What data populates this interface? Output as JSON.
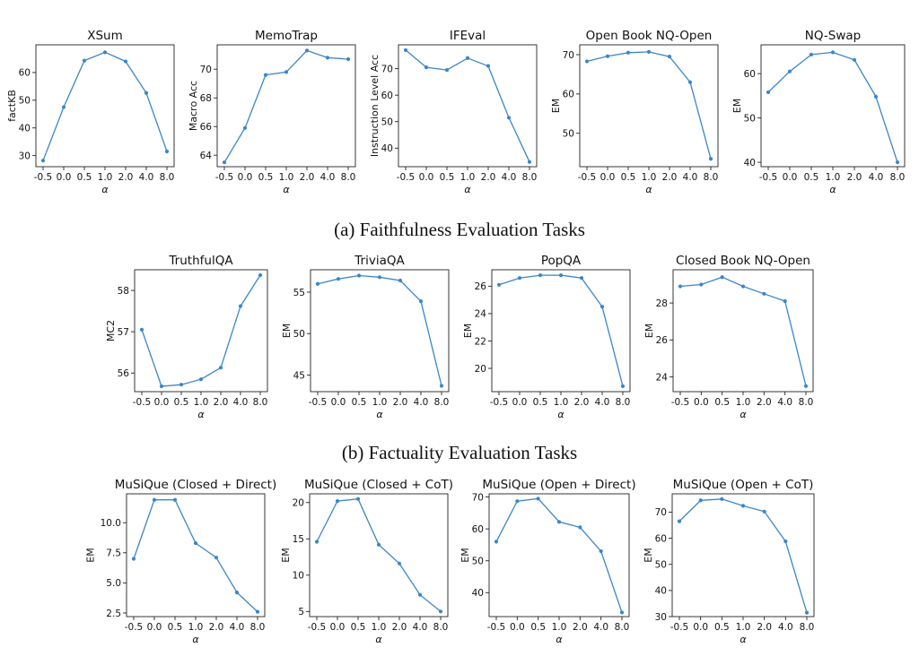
{
  "captions": {
    "a": "(a) Faithfulness Evaluation Tasks",
    "b": "(b) Factuality Evaluation Tasks"
  },
  "style": {
    "line_color": "#3b86c6",
    "axis_color": "#222222"
  },
  "chart_data": [
    {
      "type": "line",
      "title": "XSum",
      "xlabel": "α",
      "ylabel": "factKB",
      "categories": [
        "-0.5",
        "0.0",
        "0.5",
        "1.0",
        "2.0",
        "4.0",
        "8.0"
      ],
      "values": [
        28.2,
        47.5,
        64.3,
        67.3,
        64.0,
        52.6,
        31.5
      ],
      "ylim": [
        26,
        70
      ],
      "yticks": [
        30,
        40,
        50,
        60
      ]
    },
    {
      "type": "line",
      "title": "MemoTrap",
      "xlabel": "α",
      "ylabel": "Macro Acc",
      "categories": [
        "-0.5",
        "0.0",
        "0.5",
        "1.0",
        "2.0",
        "4.0",
        "8.0"
      ],
      "values": [
        63.5,
        65.9,
        69.6,
        69.8,
        71.3,
        70.8,
        70.7
      ],
      "ylim": [
        63.2,
        71.7
      ],
      "yticks": [
        64,
        66,
        68,
        70
      ]
    },
    {
      "type": "line",
      "title": "IFEval",
      "xlabel": "α",
      "ylabel": "Instruction Level Acc",
      "categories": [
        "-0.5",
        "0.0",
        "0.5",
        "1.0",
        "2.0",
        "4.0",
        "8.0"
      ],
      "values": [
        77.0,
        70.5,
        69.5,
        74.0,
        71.0,
        51.5,
        34.8
      ],
      "ylim": [
        33,
        79
      ],
      "yticks": [
        40,
        50,
        60,
        70
      ]
    },
    {
      "type": "line",
      "title": "Open Book NQ-Open",
      "xlabel": "α",
      "ylabel": "EM",
      "categories": [
        "-0.5",
        "0.0",
        "0.5",
        "1.0",
        "2.0",
        "4.0",
        "8.0"
      ],
      "values": [
        68.3,
        69.6,
        70.5,
        70.7,
        69.5,
        63.0,
        43.5
      ],
      "ylim": [
        41.5,
        72.5
      ],
      "yticks": [
        50,
        60,
        70
      ]
    },
    {
      "type": "line",
      "title": "NQ-Swap",
      "xlabel": "α",
      "ylabel": "EM",
      "categories": [
        "-0.5",
        "0.0",
        "0.5",
        "1.0",
        "2.0",
        "4.0",
        "8.0"
      ],
      "values": [
        55.8,
        60.5,
        64.3,
        64.8,
        63.1,
        54.8,
        40.0
      ],
      "ylim": [
        39,
        66.5
      ],
      "yticks": [
        40,
        50,
        60
      ]
    },
    {
      "type": "line",
      "title": "TruthfulQA",
      "xlabel": "α",
      "ylabel": "MC2",
      "categories": [
        "-0.5",
        "0.0",
        "0.5",
        "1.0",
        "2.0",
        "4.0",
        "8.0"
      ],
      "values": [
        57.05,
        55.68,
        55.72,
        55.85,
        56.13,
        57.62,
        58.37
      ],
      "ylim": [
        55.55,
        58.5
      ],
      "yticks": [
        56,
        57,
        58
      ]
    },
    {
      "type": "line",
      "title": "TriviaQA",
      "xlabel": "α",
      "ylabel": "EM",
      "categories": [
        "-0.5",
        "0.0",
        "0.5",
        "1.0",
        "2.0",
        "4.0",
        "8.0"
      ],
      "values": [
        56.0,
        56.6,
        57.0,
        56.8,
        56.4,
        53.9,
        43.7
      ],
      "ylim": [
        43.0,
        57.7
      ],
      "yticks": [
        45,
        50,
        55
      ]
    },
    {
      "type": "line",
      "title": "PopQA",
      "xlabel": "α",
      "ylabel": "EM",
      "categories": [
        "-0.5",
        "0.0",
        "0.5",
        "1.0",
        "2.0",
        "4.0",
        "8.0"
      ],
      "values": [
        26.1,
        26.6,
        26.8,
        26.8,
        26.6,
        24.5,
        18.7
      ],
      "ylim": [
        18.3,
        27.2
      ],
      "yticks": [
        20,
        22,
        24,
        26
      ]
    },
    {
      "type": "line",
      "title": "Closed Book NQ-Open",
      "xlabel": "α",
      "ylabel": "EM",
      "categories": [
        "-0.5",
        "0.0",
        "0.5",
        "1.0",
        "2.0",
        "4.0",
        "8.0"
      ],
      "values": [
        28.9,
        29.0,
        29.4,
        28.9,
        28.5,
        28.1,
        23.5
      ],
      "ylim": [
        23.2,
        29.8
      ],
      "yticks": [
        24,
        26,
        28
      ]
    },
    {
      "type": "line",
      "title": "MuSiQue (Closed + Direct)",
      "xlabel": "α",
      "ylabel": "EM",
      "categories": [
        "-0.5",
        "0.0",
        "0.5",
        "1.0",
        "2.0",
        "4.0",
        "8.0"
      ],
      "values": [
        7.0,
        11.9,
        11.9,
        8.3,
        7.1,
        4.2,
        2.6
      ],
      "ylim": [
        2.2,
        12.4
      ],
      "yticks": [
        2.5,
        5.0,
        7.5,
        10.0
      ]
    },
    {
      "type": "line",
      "title": "MuSiQue (Closed + CoT)",
      "xlabel": "α",
      "ylabel": "EM",
      "categories": [
        "-0.5",
        "0.0",
        "0.5",
        "1.0",
        "2.0",
        "4.0",
        "8.0"
      ],
      "values": [
        14.6,
        20.2,
        20.5,
        14.2,
        11.6,
        7.3,
        5.0
      ],
      "ylim": [
        4.3,
        21.2
      ],
      "yticks": [
        5,
        10,
        15,
        20
      ]
    },
    {
      "type": "line",
      "title": "MuSiQue (Open + Direct)",
      "xlabel": "α",
      "ylabel": "EM",
      "categories": [
        "-0.5",
        "0.0",
        "0.5",
        "1.0",
        "2.0",
        "4.0",
        "8.0"
      ],
      "values": [
        56.0,
        68.7,
        69.5,
        62.2,
        60.5,
        53.0,
        33.8
      ],
      "ylim": [
        32.5,
        71
      ],
      "yticks": [
        40,
        50,
        60,
        70
      ]
    },
    {
      "type": "line",
      "title": "MuSiQue (Open + CoT)",
      "xlabel": "α",
      "ylabel": "EM",
      "categories": [
        "-0.5",
        "0.0",
        "0.5",
        "1.0",
        "2.0",
        "4.0",
        "8.0"
      ],
      "values": [
        66.5,
        74.5,
        75.0,
        72.4,
        70.2,
        58.8,
        31.5
      ],
      "ylim": [
        30,
        77
      ],
      "yticks": [
        30,
        40,
        50,
        60,
        70
      ]
    }
  ]
}
